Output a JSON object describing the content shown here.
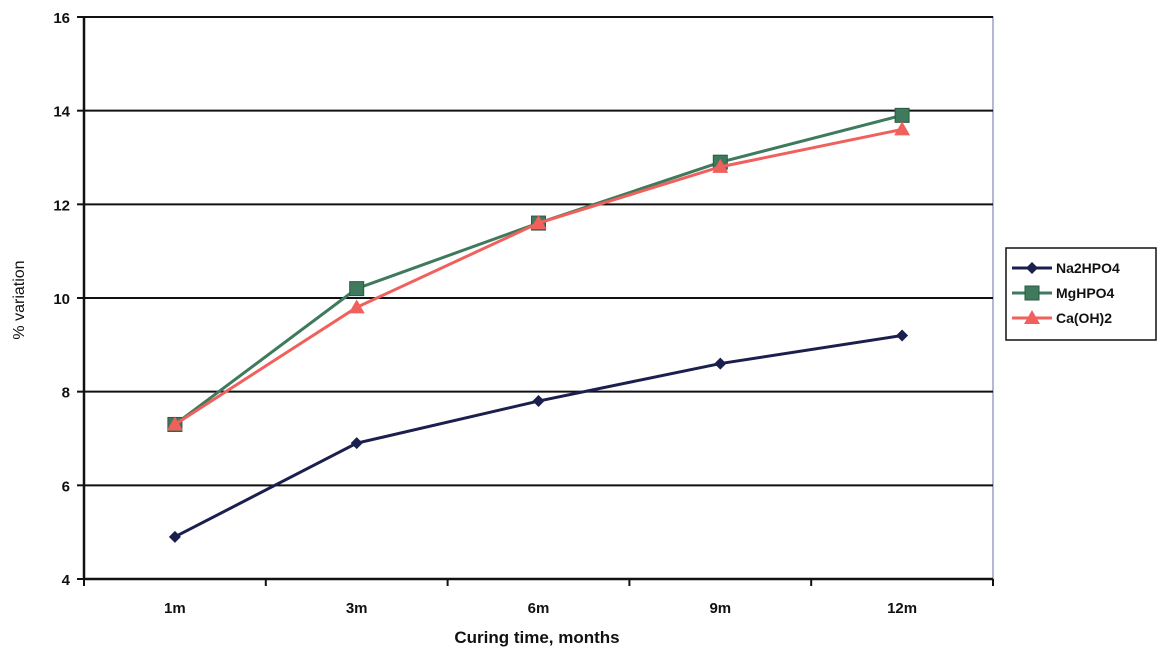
{
  "chart_data": {
    "type": "line",
    "categories": [
      "1m",
      "3m",
      "6m",
      "9m",
      "12m"
    ],
    "series": [
      {
        "name": "Na2HPO4",
        "values": [
          4.9,
          6.9,
          7.8,
          8.6,
          9.2
        ],
        "color": "#1a1f4d",
        "marker": "diamond"
      },
      {
        "name": "MgHPO4",
        "values": [
          7.3,
          10.2,
          11.6,
          12.9,
          13.9
        ],
        "color": "#3f7a5c",
        "marker": "square"
      },
      {
        "name": "Ca(OH)2",
        "values": [
          7.3,
          9.8,
          11.6,
          12.8,
          13.6
        ],
        "color": "#f0605c",
        "marker": "triangle"
      }
    ],
    "title": "",
    "xlabel": "Curing time, months",
    "ylabel": "% variation",
    "ylim": [
      4,
      16
    ],
    "yticks": [
      4,
      6,
      8,
      10,
      12,
      14,
      16
    ],
    "grid": true,
    "legend_position": "right"
  }
}
